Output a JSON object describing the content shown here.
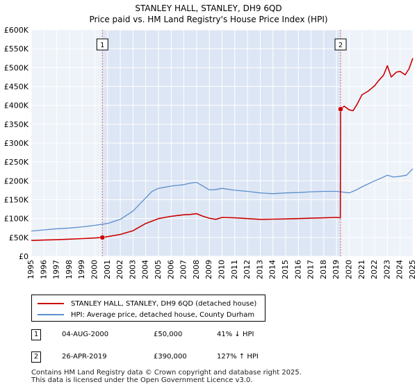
{
  "title": "STANLEY HALL, STANLEY, DH9 6QD",
  "subtitle": "Price paid vs. HM Land Registry's House Price Index (HPI)",
  "colors": {
    "property": "#cc0000",
    "hpi": "#5b8fcb",
    "shade": "#dde6f4",
    "grid": "#ffffff",
    "vline": "#e06060"
  },
  "chart_data": {
    "type": "line",
    "title": "STANLEY HALL, STANLEY, DH9 6QD",
    "xlabel": "",
    "ylabel": "",
    "xlim": [
      1995,
      2025
    ],
    "ylim": [
      0,
      600000
    ],
    "yticks": [
      0,
      50000,
      100000,
      150000,
      200000,
      250000,
      300000,
      350000,
      400000,
      450000,
      500000,
      550000,
      600000
    ],
    "ytick_labels": [
      "£0",
      "£50K",
      "£100K",
      "£150K",
      "£200K",
      "£250K",
      "£300K",
      "£350K",
      "£400K",
      "£450K",
      "£500K",
      "£550K",
      "£600K"
    ],
    "xticks": [
      1995,
      1996,
      1997,
      1998,
      1999,
      2000,
      2001,
      2002,
      2003,
      2004,
      2005,
      2006,
      2007,
      2008,
      2009,
      2010,
      2011,
      2012,
      2013,
      2014,
      2015,
      2016,
      2017,
      2018,
      2019,
      2020,
      2021,
      2022,
      2023,
      2024,
      2025
    ],
    "xtick_labels": [
      "1995",
      "1996",
      "1997",
      "1998",
      "1999",
      "2000",
      "2001",
      "2002",
      "2003",
      "2004",
      "2005",
      "2006",
      "2007",
      "2008",
      "2009",
      "2010",
      "2011",
      "2012",
      "2013",
      "2014",
      "2015",
      "2016",
      "2017",
      "2018",
      "2019",
      "2020",
      "2021",
      "2022",
      "2023",
      "2024",
      "2025"
    ],
    "shaded_region": [
      2000.59,
      2019.32
    ],
    "series": [
      {
        "name": "STANLEY HALL, STANLEY, DH9 6QD (detached house)",
        "color": "#cc0000",
        "x": [
          1995.0,
          1996.0,
          1997.0,
          1998.0,
          1999.0,
          2000.0,
          2000.59,
          2001.0,
          2002.0,
          2003.0,
          2004.0,
          2005.0,
          2006.0,
          2007.0,
          2007.5,
          2008.0,
          2008.5,
          2009.0,
          2009.5,
          2010.0,
          2011.0,
          2012.0,
          2013.0,
          2014.0,
          2015.0,
          2016.0,
          2017.0,
          2018.0,
          2019.0,
          2019.3,
          2019.32,
          2019.6,
          2020.0,
          2020.3,
          2020.6,
          2021.0,
          2021.5,
          2022.0,
          2022.3,
          2022.7,
          2023.0,
          2023.3,
          2023.7,
          2024.0,
          2024.4,
          2024.7,
          2025.0
        ],
        "values": [
          42000,
          43000,
          44000,
          45500,
          47000,
          48500,
          50000,
          52000,
          58000,
          68000,
          87000,
          100000,
          106000,
          110000,
          111000,
          113000,
          106000,
          101000,
          98000,
          103000,
          102000,
          100000,
          98000,
          98500,
          99000,
          100000,
          101000,
          102000,
          103000,
          102000,
          390000,
          398000,
          388000,
          386000,
          402000,
          428000,
          438000,
          452000,
          465000,
          480000,
          505000,
          475000,
          488000,
          490000,
          481000,
          497000,
          525000
        ]
      },
      {
        "name": "HPI: Average price, detached house, County Durham",
        "color": "#5b8fcb",
        "x": [
          1995.0,
          1996.0,
          1997.0,
          1998.0,
          1999.0,
          2000.0,
          2000.59,
          2001.0,
          2002.0,
          2003.0,
          2004.0,
          2004.5,
          2005.0,
          2006.0,
          2007.0,
          2007.5,
          2008.0,
          2008.5,
          2009.0,
          2009.5,
          2010.0,
          2011.0,
          2012.0,
          2013.0,
          2014.0,
          2015.0,
          2016.0,
          2017.0,
          2018.0,
          2019.0,
          2019.32,
          2020.0,
          2020.5,
          2021.0,
          2022.0,
          2022.5,
          2023.0,
          2023.5,
          2024.0,
          2024.5,
          2025.0
        ],
        "values": [
          67000,
          70000,
          73000,
          75000,
          78000,
          82000,
          85000,
          87000,
          98000,
          120000,
          155000,
          172000,
          180000,
          186000,
          190000,
          194000,
          196000,
          186000,
          176000,
          177000,
          180000,
          175000,
          172000,
          168000,
          166000,
          168000,
          169000,
          171000,
          172000,
          172000,
          171000,
          168000,
          175000,
          184000,
          200000,
          207000,
          215000,
          210000,
          212000,
          215000,
          232000
        ]
      }
    ],
    "annotations": [
      {
        "label": "1",
        "x": 2000.59,
        "value": 50000
      },
      {
        "label": "2",
        "x": 2019.32,
        "value": 390000
      }
    ]
  },
  "legend": {
    "property": "STANLEY HALL, STANLEY, DH9 6QD (detached house)",
    "hpi": "HPI: Average price, detached house, County Durham"
  },
  "transactions": [
    {
      "num": "1",
      "date": "04-AUG-2000",
      "price": "£50,000",
      "hpi": "41% ↓ HPI"
    },
    {
      "num": "2",
      "date": "26-APR-2019",
      "price": "£390,000",
      "hpi": "127% ↑ HPI"
    }
  ],
  "footer": {
    "line1": "Contains HM Land Registry data © Crown copyright and database right 2025.",
    "line2": "This data is licensed under the Open Government Licence v3.0."
  }
}
